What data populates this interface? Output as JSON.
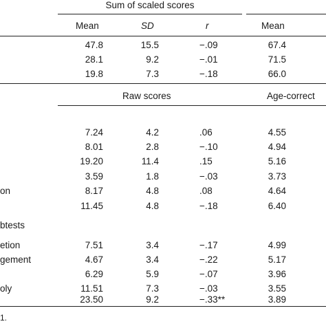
{
  "header": {
    "group1": "Sum of scaled scores",
    "columns": [
      "Mean",
      "SD",
      "r",
      "Mean"
    ]
  },
  "section1": {
    "rows": [
      {
        "mean": "47.8",
        "sd": "15.5",
        "r": "−.09",
        "mean2": "67.4"
      },
      {
        "mean": "28.1",
        "sd": "9.2",
        "r": "−.01",
        "mean2": "71.5"
      },
      {
        "mean": "19.8",
        "sd": "7.3",
        "r": "−.18",
        "mean2": "66.0"
      }
    ]
  },
  "section2": {
    "group1": "Raw scores",
    "group2": "Age-correct",
    "rows": [
      {
        "label": "",
        "mean": "7.24",
        "sd": "4.2",
        "r": ".06",
        "mean2": "4.55"
      },
      {
        "label": "",
        "mean": "8.01",
        "sd": "2.8",
        "r": "−.10",
        "mean2": "4.94"
      },
      {
        "label": "",
        "mean": "19.20",
        "sd": "11.4",
        "r": ".15",
        "mean2": "5.16"
      },
      {
        "label": "",
        "mean": "3.59",
        "sd": "1.8",
        "r": "−.03",
        "mean2": "3.73"
      },
      {
        "label": "on",
        "mean": "8.17",
        "sd": "4.8",
        "r": ".08",
        "mean2": "4.64"
      },
      {
        "label": "",
        "mean": "11.45",
        "sd": "4.8",
        "r": "−.18",
        "mean2": "6.40"
      }
    ]
  },
  "section3": {
    "heading": "btests",
    "rows": [
      {
        "label": "etion",
        "mean": "7.51",
        "sd": "3.4",
        "r": "−.17",
        "mean2": "4.99"
      },
      {
        "label": "gement",
        "mean": "4.67",
        "sd": "3.4",
        "r": "−.22",
        "mean2": "5.17"
      },
      {
        "label": "",
        "mean": "6.29",
        "sd": "5.9",
        "r": "−.07",
        "mean2": "3.96"
      },
      {
        "label": "oly",
        "mean": "11.51",
        "sd": "7.3",
        "r": "−.03",
        "mean2": "3.55"
      },
      {
        "label": "",
        "mean": "23.50",
        "sd": "9.2",
        "r": "−.33**",
        "mean2": "3.89"
      }
    ]
  },
  "footnote": "1."
}
